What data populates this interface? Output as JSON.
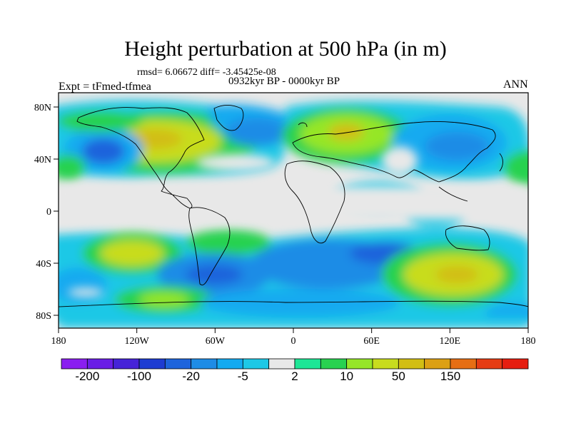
{
  "header": {
    "title": "Height perturbation at 500 hPa (in m)",
    "stats": "rmsd= 6.06672 diff= -3.45425e-08",
    "experiment": "Expt = tFmed-tfmea",
    "period": "0932kyr BP - 0000kyr BP",
    "season": "ANN"
  },
  "axes": {
    "lon_labels": [
      "180",
      "120W",
      "60W",
      "0",
      "60E",
      "120E",
      "180"
    ],
    "lat_labels": [
      "80N",
      "40N",
      "0",
      "40S",
      "80S"
    ]
  },
  "colorbar": {
    "colors": [
      "#8a1ef0",
      "#6a1ee6",
      "#4623d8",
      "#1e3cd2",
      "#1e64dc",
      "#1e8ce6",
      "#14aaf0",
      "#1ec8e6",
      "#e8e8e8",
      "#1ee696",
      "#28d250",
      "#96e628",
      "#c8dc1e",
      "#d2be14",
      "#dca014",
      "#e66e14",
      "#e63c14",
      "#e61e10"
    ],
    "labels": [
      "-200",
      "-100",
      "-20",
      "-5",
      "2",
      "10",
      "50",
      "150"
    ]
  }
}
